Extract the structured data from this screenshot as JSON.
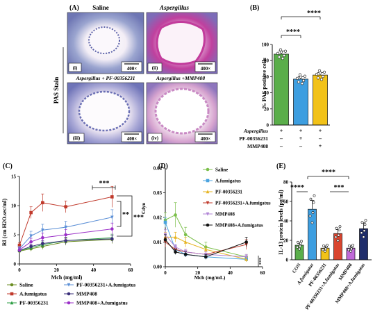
{
  "panel_a": {
    "label": "(A)",
    "saline_label": "Saline",
    "aspergillus_label": "Aspergillus",
    "side_label": "PAS Stain",
    "bottom_left_label": "Aspergillus + PF-00356231",
    "bottom_right_label": "Aspergillus +MMP408",
    "tiles": [
      {
        "id": "i",
        "tag": "(i)",
        "scale": "400×"
      },
      {
        "id": "ii",
        "tag": "(ii)",
        "scale": "400×"
      },
      {
        "id": "iii",
        "tag": "(iii)",
        "scale": "400×"
      },
      {
        "id": "iv",
        "tag": "(iv)",
        "scale": "400×"
      }
    ]
  },
  "panel_b": {
    "label": "(B)",
    "sig": "****"
  },
  "panel_c": {
    "label": "(C)",
    "sig_top": "***",
    "sig_mid": "**",
    "sig_right": "***"
  },
  "panel_d": {
    "label": "(D)",
    "sig": "***"
  },
  "panel_e": {
    "label": "(E)",
    "sig_top": "****",
    "sig_left": "****",
    "sig_right": "***"
  },
  "chart_data": [
    {
      "panel": "B",
      "type": "bar",
      "ylabel": "% PAS positive cells",
      "ylim": [
        0,
        100
      ],
      "yticks": [
        0,
        20,
        40,
        60,
        80,
        100
      ],
      "categories": [
        "g1",
        "g2",
        "g3"
      ],
      "values": [
        88,
        57,
        62
      ],
      "errors": [
        4,
        3,
        3
      ],
      "colors": [
        "#5aae4a",
        "#3d9ee0",
        "#f2c218"
      ],
      "condition_rows": [
        {
          "name": "Aspergillus",
          "marks": [
            "+",
            "+",
            "+"
          ]
        },
        {
          "name": "PF-00356231",
          "marks": [
            "–",
            "+",
            "–"
          ]
        },
        {
          "name": "MMP408",
          "marks": [
            "–",
            "–",
            "+"
          ]
        }
      ]
    },
    {
      "panel": "C",
      "type": "line",
      "xlabel": "Mch (mg/ml)",
      "ylabel": "RI (cm H2O.sec/ml)",
      "xlim": [
        0,
        60
      ],
      "ylim": [
        0,
        15
      ],
      "xticks": [
        0,
        20,
        40,
        60
      ],
      "yticks": [
        0,
        5,
        10,
        15
      ],
      "x": [
        0,
        6.25,
        12.5,
        25,
        50
      ],
      "series": [
        {
          "name": "Saline",
          "color": "#6b8e23",
          "marker": "circle",
          "values": [
            2.2,
            2.6,
            3.0,
            3.8,
            4.2
          ],
          "errors": [
            0.3,
            0.4,
            0.5,
            0.6,
            0.7
          ]
        },
        {
          "name": "A.fumigatus",
          "color": "#c0392b",
          "marker": "square",
          "values": [
            3.2,
            8.8,
            10.5,
            9.8,
            11.5
          ],
          "errors": [
            0.4,
            1.0,
            1.5,
            1.0,
            1.8
          ]
        },
        {
          "name": "PF-00356231",
          "color": "#2e9e44",
          "marker": "triangle",
          "values": [
            2.3,
            2.8,
            3.3,
            4.0,
            4.5
          ],
          "errors": [
            0.3,
            0.4,
            0.5,
            0.5,
            0.6
          ]
        },
        {
          "name": "PF-00356231+A.fumigatus",
          "color": "#5b8fd6",
          "marker": "triangle-down",
          "values": [
            2.6,
            4.8,
            5.8,
            6.3,
            8.0
          ],
          "errors": [
            0.4,
            0.8,
            1.0,
            1.0,
            1.3
          ]
        },
        {
          "name": "MMP408",
          "color": "#3a2f7a",
          "marker": "circle",
          "values": [
            2.3,
            3.0,
            3.5,
            4.0,
            4.3
          ],
          "errors": [
            0.3,
            0.4,
            0.5,
            0.6,
            0.6
          ]
        },
        {
          "name": "MMP408+A.fumigatus",
          "color": "#9b30c8",
          "marker": "circle",
          "values": [
            2.4,
            3.8,
            4.5,
            5.0,
            6.0
          ],
          "errors": [
            0.4,
            0.6,
            0.8,
            0.9,
            1.0
          ]
        }
      ]
    },
    {
      "panel": "D",
      "type": "line",
      "xlabel": "Mch (mg/mL)",
      "ylabel": "Cdyn",
      "xlim": [
        0,
        60
      ],
      "ylim": [
        0,
        0.04
      ],
      "xticks": [
        0,
        20,
        40,
        60
      ],
      "yticks": [
        0,
        0.01,
        0.02,
        0.03,
        0.04
      ],
      "ytick_labels": [
        "0.00",
        "0.01",
        "0.02",
        "0.03",
        "0.04"
      ],
      "x": [
        0,
        6.25,
        12.5,
        25,
        50
      ],
      "series": [
        {
          "name": "Saline",
          "color": "#7bbf4a",
          "marker": "circle",
          "values": [
            0.019,
            0.021,
            0.013,
            0.008,
            0.004
          ],
          "errors": [
            0.003,
            0.005,
            0.003,
            0.002,
            0.001
          ]
        },
        {
          "name": "A.fumigatus",
          "color": "#4aa3df",
          "marker": "square",
          "values": [
            0.018,
            0.007,
            0.005,
            0.004,
            0.003
          ],
          "errors": [
            0.002,
            0.002,
            0.001,
            0.001,
            0.001
          ]
        },
        {
          "name": "PF-00356231",
          "color": "#e6b422",
          "marker": "triangle",
          "values": [
            0.012,
            0.012,
            0.01,
            0.007,
            0.003
          ],
          "errors": [
            0.002,
            0.002,
            0.002,
            0.001,
            0.001
          ]
        },
        {
          "name": "PF-00356231+A.fumigatus",
          "color": "#c0392b",
          "marker": "triangle-down",
          "values": [
            0.01,
            0.007,
            0.006,
            0.005,
            0.009
          ],
          "errors": [
            0.002,
            0.001,
            0.001,
            0.001,
            0.002
          ]
        },
        {
          "name": "MMP408",
          "color": "#b084d6",
          "marker": "triangle-down",
          "values": [
            0.013,
            0.008,
            0.006,
            0.005,
            0.004
          ],
          "errors": [
            0.002,
            0.001,
            0.001,
            0.001,
            0.001
          ]
        },
        {
          "name": "MMP408+A.fumigatus",
          "color": "#111111",
          "marker": "circle",
          "values": [
            0.011,
            0.006,
            0.005,
            0.004,
            0.01
          ],
          "errors": [
            0.002,
            0.001,
            0.001,
            0.001,
            0.002
          ]
        }
      ]
    },
    {
      "panel": "E",
      "type": "bar",
      "ylabel": "IL-13 protein levels (pg/ml)",
      "ylim": [
        0,
        80
      ],
      "yticks": [
        0,
        20,
        40,
        60,
        80
      ],
      "categories": [
        "CON",
        "A.fumigatus",
        "PF-00356231",
        "PF-00356231+A.fumigatus",
        "MMP408",
        "MMP408+A.fumigatus"
      ],
      "values": [
        15,
        52,
        12,
        27,
        12,
        32
      ],
      "errors": [
        2,
        9,
        2,
        4,
        2,
        6
      ],
      "colors": [
        "#5aae4a",
        "#3d9ee0",
        "#f2c218",
        "#d9452f",
        "#c06ad8",
        "#1f2d6b"
      ]
    }
  ]
}
